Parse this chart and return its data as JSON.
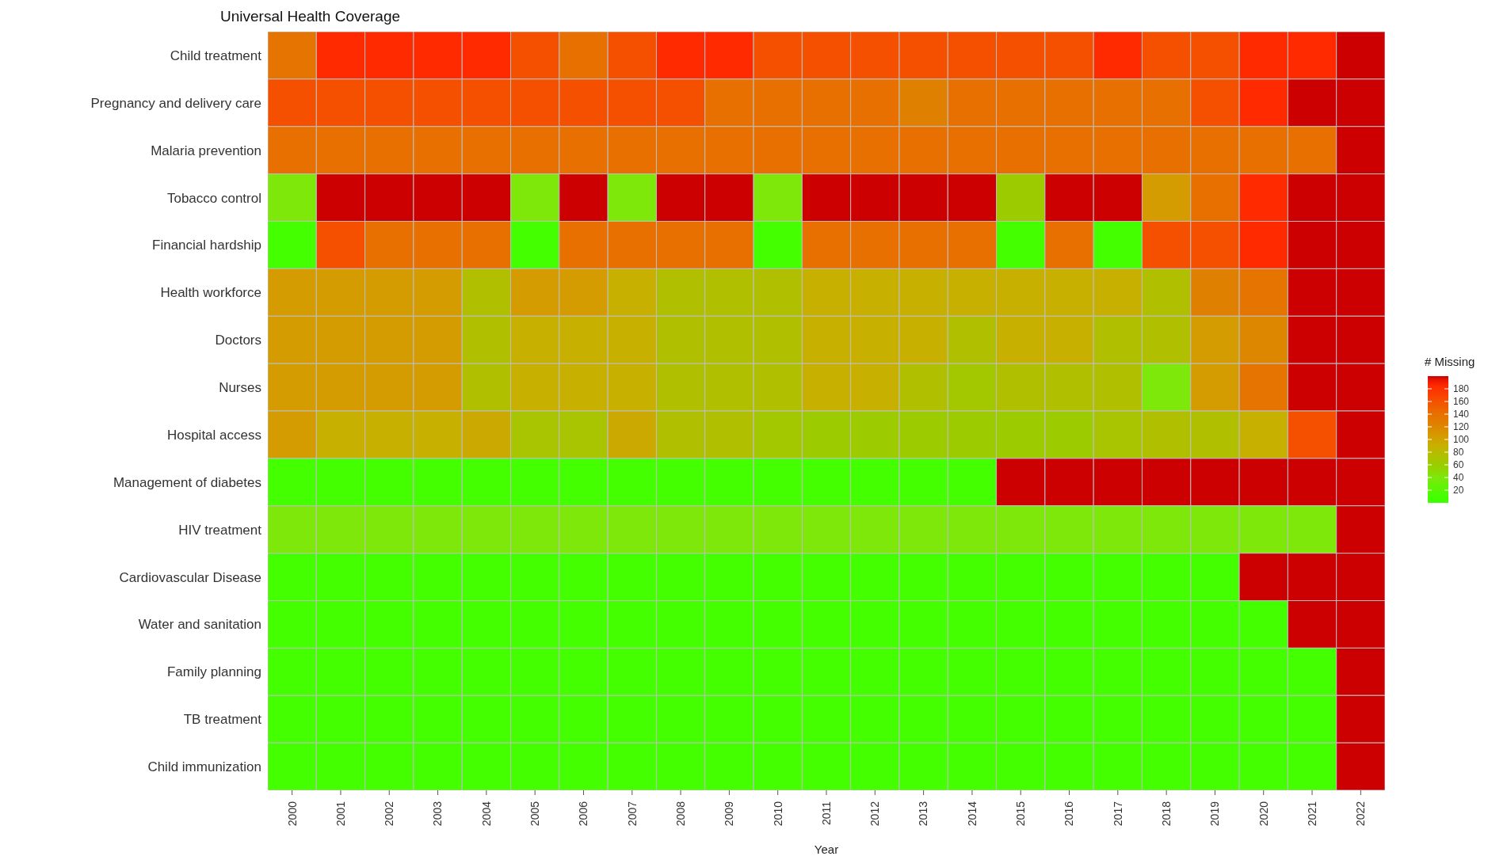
{
  "chart_data": {
    "type": "heatmap",
    "title": "Universal Health Coverage",
    "xlabel": "Year",
    "clabel": "# Missing",
    "categories": [
      "2000",
      "2001",
      "2002",
      "2003",
      "2004",
      "2005",
      "2006",
      "2007",
      "2008",
      "2009",
      "2010",
      "2011",
      "2012",
      "2013",
      "2014",
      "2015",
      "2016",
      "2017",
      "2018",
      "2019",
      "2020",
      "2021",
      "2022"
    ],
    "y_categories": [
      "Child treatment",
      "Pregnancy and delivery care",
      "Malaria prevention",
      "Tobacco control",
      "Financial hardship",
      "Health workforce",
      "Doctors",
      "Nurses",
      "Hospital access",
      "Management of diabetes",
      "HIV treatment",
      "Cardiovascular Disease",
      "Water and sanitation",
      "Family planning",
      "TB treatment",
      "Child immunization"
    ],
    "cells": [
      [
        135,
        185,
        185,
        185,
        185,
        160,
        140,
        160,
        185,
        185,
        160,
        160,
        160,
        160,
        160,
        160,
        160,
        185,
        160,
        160,
        185,
        185,
        200
      ],
      [
        160,
        160,
        160,
        160,
        160,
        160,
        160,
        160,
        160,
        140,
        140,
        140,
        140,
        125,
        140,
        140,
        140,
        140,
        140,
        160,
        185,
        200,
        200
      ],
      [
        140,
        140,
        140,
        140,
        140,
        140,
        140,
        140,
        140,
        140,
        140,
        140,
        140,
        140,
        140,
        140,
        140,
        140,
        140,
        140,
        140,
        140,
        200
      ],
      [
        40,
        200,
        200,
        200,
        200,
        40,
        200,
        40,
        200,
        200,
        40,
        200,
        200,
        200,
        200,
        60,
        200,
        200,
        105,
        140,
        185,
        200,
        200
      ],
      [
        10,
        160,
        140,
        140,
        140,
        10,
        140,
        140,
        140,
        140,
        10,
        140,
        140,
        140,
        140,
        10,
        140,
        10,
        160,
        160,
        185,
        200,
        200
      ],
      [
        105,
        105,
        105,
        105,
        75,
        105,
        105,
        90,
        75,
        75,
        75,
        90,
        90,
        90,
        90,
        90,
        90,
        90,
        75,
        125,
        135,
        200,
        200
      ],
      [
        105,
        105,
        105,
        105,
        75,
        90,
        90,
        90,
        75,
        75,
        75,
        90,
        90,
        90,
        75,
        90,
        90,
        75,
        75,
        105,
        120,
        200,
        200
      ],
      [
        105,
        105,
        105,
        105,
        75,
        90,
        90,
        90,
        75,
        75,
        75,
        90,
        90,
        75,
        65,
        75,
        75,
        75,
        40,
        105,
        135,
        200,
        200
      ],
      [
        105,
        90,
        90,
        90,
        95,
        70,
        70,
        95,
        75,
        75,
        65,
        60,
        60,
        60,
        60,
        60,
        60,
        70,
        75,
        75,
        90,
        160,
        200
      ],
      [
        10,
        10,
        10,
        10,
        10,
        10,
        10,
        10,
        10,
        10,
        10,
        10,
        10,
        10,
        10,
        200,
        200,
        200,
        200,
        200,
        200,
        200,
        200
      ],
      [
        40,
        40,
        40,
        40,
        40,
        40,
        40,
        40,
        40,
        40,
        40,
        40,
        40,
        40,
        40,
        40,
        40,
        40,
        40,
        40,
        40,
        40,
        200
      ],
      [
        10,
        10,
        10,
        10,
        10,
        10,
        10,
        10,
        10,
        10,
        10,
        10,
        10,
        10,
        10,
        10,
        10,
        10,
        10,
        10,
        200,
        200,
        200
      ],
      [
        10,
        10,
        10,
        10,
        10,
        10,
        10,
        10,
        10,
        10,
        10,
        10,
        10,
        10,
        10,
        10,
        10,
        10,
        10,
        10,
        10,
        200,
        200
      ],
      [
        10,
        10,
        10,
        10,
        10,
        10,
        10,
        10,
        10,
        10,
        10,
        10,
        10,
        10,
        10,
        10,
        10,
        10,
        10,
        10,
        10,
        10,
        200
      ],
      [
        10,
        10,
        10,
        10,
        10,
        10,
        10,
        10,
        10,
        10,
        10,
        10,
        10,
        10,
        10,
        10,
        10,
        10,
        10,
        10,
        10,
        10,
        200
      ],
      [
        10,
        10,
        10,
        10,
        10,
        10,
        10,
        10,
        10,
        10,
        10,
        10,
        10,
        10,
        10,
        10,
        10,
        10,
        10,
        10,
        10,
        10,
        200
      ]
    ],
    "clim": [
      0,
      200
    ],
    "cticks": [
      20,
      40,
      60,
      80,
      100,
      120,
      140,
      160,
      180
    ]
  }
}
